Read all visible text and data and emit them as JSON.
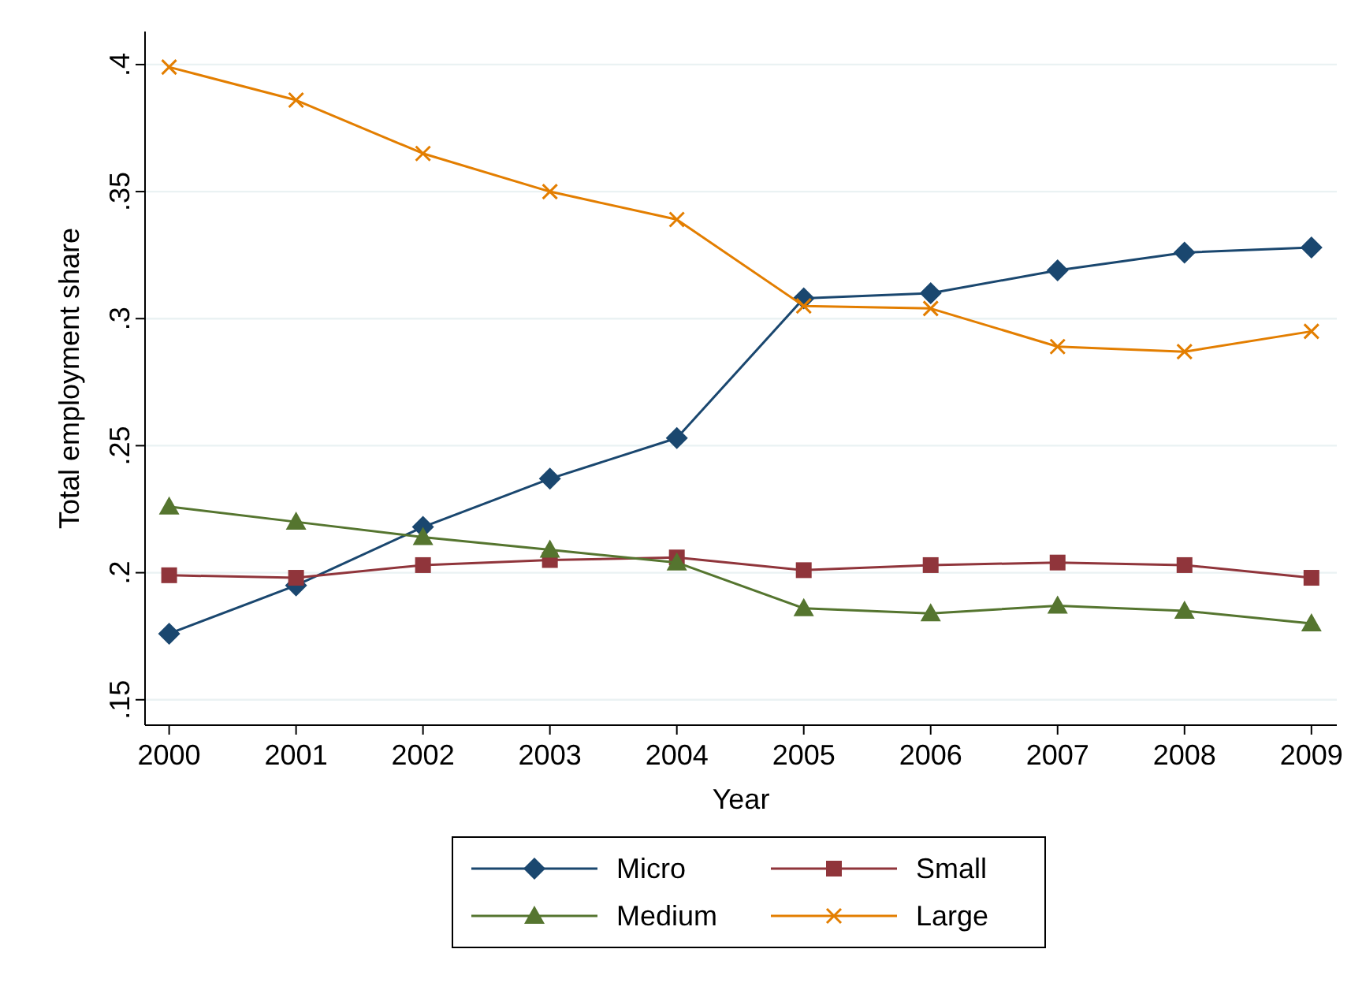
{
  "chart_data": {
    "type": "line",
    "xlabel": "Year",
    "ylabel": "Total employment share",
    "x": [
      2000,
      2001,
      2002,
      2003,
      2004,
      2005,
      2006,
      2007,
      2008,
      2009
    ],
    "xlim": [
      1999.81,
      2009.2
    ],
    "xticks": [
      2000,
      2001,
      2002,
      2003,
      2004,
      2005,
      2006,
      2007,
      2008,
      2009
    ],
    "ylim": [
      0.14,
      0.413
    ],
    "yticks": [
      {
        "value": 0.15,
        "label": ".15"
      },
      {
        "value": 0.2,
        "label": ".2"
      },
      {
        "value": 0.25,
        "label": ".25"
      },
      {
        "value": 0.3,
        "label": ".3"
      },
      {
        "value": 0.35,
        "label": ".35"
      },
      {
        "value": 0.4,
        "label": ".4"
      }
    ],
    "grid": "y",
    "legend": "bottom",
    "line_style": "solid",
    "series": [
      {
        "name": "Micro",
        "color": "#1a476f",
        "marker": "diamond",
        "values": [
          0.176,
          0.195,
          0.218,
          0.237,
          0.253,
          0.308,
          0.31,
          0.319,
          0.326,
          0.328
        ]
      },
      {
        "name": "Small",
        "color": "#90353b",
        "marker": "square",
        "values": [
          0.199,
          0.198,
          0.203,
          0.205,
          0.206,
          0.201,
          0.203,
          0.204,
          0.203,
          0.198
        ]
      },
      {
        "name": "Medium",
        "color": "#55752f",
        "marker": "triangle",
        "values": [
          0.226,
          0.22,
          0.214,
          0.209,
          0.204,
          0.186,
          0.184,
          0.187,
          0.185,
          0.18
        ]
      },
      {
        "name": "Large",
        "color": "#e37e00",
        "marker": "cross",
        "values": [
          0.399,
          0.386,
          0.365,
          0.35,
          0.339,
          0.305,
          0.304,
          0.289,
          0.287,
          0.295
        ]
      }
    ]
  }
}
